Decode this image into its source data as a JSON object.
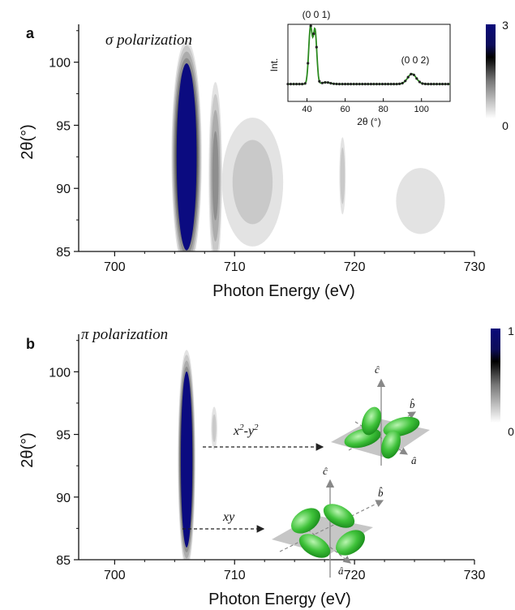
{
  "chart_data": [
    {
      "panel": "a",
      "type": "heatmap",
      "title": "σ polarization",
      "xlabel": "Photon Energy (eV)",
      "ylabel": "2θ(°)",
      "xlim": [
        697,
        730
      ],
      "ylim": [
        85,
        103
      ],
      "xticks": [
        "700",
        "710",
        "720",
        "730"
      ],
      "yticks": [
        "85",
        "90",
        "95",
        "100"
      ],
      "colorbar": {
        "min_label": "0",
        "max_label": "3",
        "range": [
          0,
          3
        ]
      },
      "features": [
        {
          "energy_eV": 706.0,
          "width_eV": 2.6,
          "two_theta_center": 92.5,
          "two_theta_halfwidth": 9.5,
          "intensity": 3.0
        },
        {
          "energy_eV": 708.4,
          "width_eV": 1.2,
          "two_theta_center": 91.0,
          "two_theta_halfwidth": 8.0,
          "intensity": 1.2
        },
        {
          "energy_eV": 711.5,
          "width_eV": 6.0,
          "two_theta_center": 90.5,
          "two_theta_halfwidth": 6.0,
          "intensity": 0.6
        },
        {
          "energy_eV": 719.0,
          "width_eV": 0.6,
          "two_theta_center": 91.0,
          "two_theta_halfwidth": 3.5,
          "intensity": 0.7
        },
        {
          "energy_eV": 725.5,
          "width_eV": 7.0,
          "two_theta_center": 89.0,
          "two_theta_halfwidth": 4.5,
          "intensity": 0.25
        }
      ],
      "inset": {
        "type": "line",
        "xlabel": "2θ (°)",
        "ylabel": "Int.",
        "xlim": [
          30,
          115
        ],
        "xticks": [
          "40",
          "60",
          "80",
          "100"
        ],
        "annotations": [
          "(0 0 1)",
          "(0 0 2)"
        ],
        "peaks": [
          {
            "two_theta": 41.8,
            "rel_intensity": 1.0
          },
          {
            "two_theta": 44.2,
            "rel_intensity": 0.95
          },
          {
            "two_theta": 95.0,
            "rel_intensity": 0.18
          }
        ]
      }
    },
    {
      "panel": "b",
      "type": "heatmap",
      "title": "π polarization",
      "xlabel": "Photon Energy (eV)",
      "ylabel": "2θ(°)",
      "xlim": [
        697,
        730
      ],
      "ylim": [
        85,
        103
      ],
      "xticks": [
        "700",
        "710",
        "720",
        "730"
      ],
      "yticks": [
        "85",
        "90",
        "95",
        "100"
      ],
      "colorbar": {
        "min_label": "0",
        "max_label": "1",
        "range": [
          0,
          1
        ]
      },
      "features": [
        {
          "energy_eV": 706.0,
          "width_eV": 1.5,
          "two_theta_center": 93.0,
          "two_theta_halfwidth": 9.0,
          "intensity": 1.0
        },
        {
          "energy_eV": 708.3,
          "width_eV": 0.6,
          "two_theta_center": 95.5,
          "two_theta_halfwidth": 2.0,
          "intensity": 0.2
        }
      ],
      "annotations": [
        {
          "text_main": "x",
          "text_sup": "2",
          "text_mid": "-y",
          "text_sup2": "2"
        },
        {
          "text_main": "xy"
        }
      ],
      "axis_labels": [
        "ĉ",
        "b̂",
        "â"
      ]
    }
  ],
  "panel_labels": [
    "a",
    "b"
  ]
}
